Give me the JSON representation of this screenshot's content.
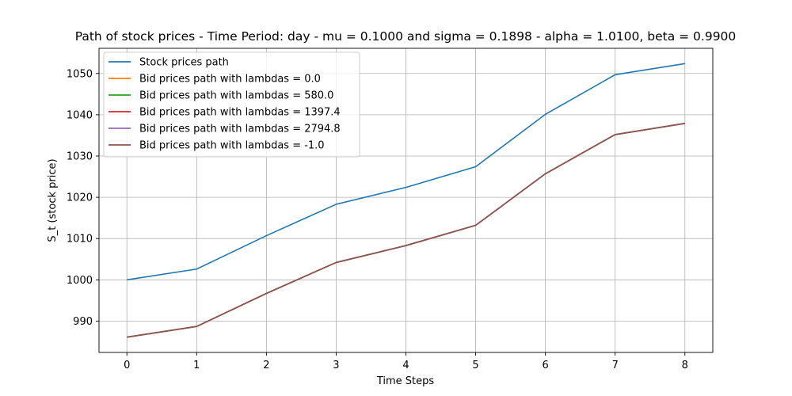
{
  "chart_data": {
    "type": "line",
    "title": "Path of stock prices - Time Period: day - mu = 0.1000 and sigma = 0.1898 - alpha = 1.0100, beta = 0.9900",
    "xlabel": "Time Steps",
    "ylabel": "S_t (stock price)",
    "x": [
      0,
      1,
      2,
      3,
      4,
      5,
      6,
      7,
      8
    ],
    "xlim": [
      -0.4,
      8.4
    ],
    "ylim": [
      982.4,
      1056.1
    ],
    "x_ticks": [
      0,
      1,
      2,
      3,
      4,
      5,
      6,
      7,
      8
    ],
    "y_ticks": [
      990,
      1000,
      1010,
      1020,
      1030,
      1040,
      1050
    ],
    "grid": true,
    "legend_position": "top-left",
    "series": [
      {
        "name": "Stock prices path",
        "color": "#1f77b4",
        "values": [
          1000.0,
          1002.6,
          1010.7,
          1018.3,
          1022.4,
          1027.4,
          1040.1,
          1049.7,
          1052.4
        ]
      },
      {
        "name": "Bid prices path with lambdas = 0.0",
        "color": "#ff7f0e",
        "values": [
          986.1,
          988.7,
          996.7,
          1004.2,
          1008.3,
          1013.2,
          1025.7,
          1035.2,
          1037.9
        ]
      },
      {
        "name": "Bid prices path with lambdas = 580.0",
        "color": "#2ca02c",
        "values": [
          986.1,
          988.7,
          996.7,
          1004.2,
          1008.3,
          1013.2,
          1025.7,
          1035.2,
          1037.9
        ]
      },
      {
        "name": "Bid prices path with lambdas = 1397.4",
        "color": "#d62728",
        "values": [
          986.1,
          988.7,
          996.7,
          1004.2,
          1008.3,
          1013.2,
          1025.7,
          1035.2,
          1037.9
        ]
      },
      {
        "name": "Bid prices path with lambdas = 2794.8",
        "color": "#9467bd",
        "values": [
          986.1,
          988.7,
          996.7,
          1004.2,
          1008.3,
          1013.2,
          1025.7,
          1035.2,
          1037.9
        ]
      },
      {
        "name": "Bid prices path with lambdas = -1.0",
        "color": "#8c564b",
        "values": [
          986.1,
          988.7,
          996.7,
          1004.2,
          1008.3,
          1013.2,
          1025.7,
          1035.2,
          1037.9
        ]
      }
    ]
  }
}
